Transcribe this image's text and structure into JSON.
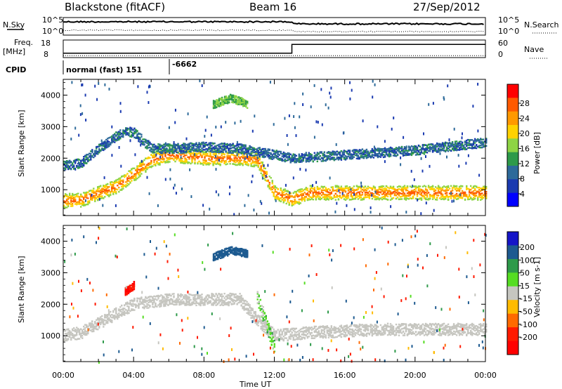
{
  "header": {
    "station": "Blackstone (fitACF)",
    "beam": "Beam 16",
    "date": "27/Sep/2012"
  },
  "strips": {
    "nsky_label": "N.Sky",
    "nsky_ticks": [
      "10^5",
      "10^0"
    ],
    "nsearch_label": "N.Search",
    "nsearch_ticks": [
      "10^5",
      "10^0"
    ],
    "freq_label": "Freq.",
    "freq_unit": "[MHz]",
    "freq_ticks": [
      "18",
      "8"
    ],
    "nave_label": "Nave",
    "nave_ticks": [
      "60",
      "0"
    ],
    "cpid_label": "CPID",
    "cpid_mode": "normal (fast) 151",
    "cpid_value": "-6662"
  },
  "power_colorbar": {
    "label": "Power [dB]",
    "ticks": [
      "28",
      "24",
      "20",
      "16",
      "12",
      "8",
      "4"
    ],
    "colors": [
      "#ff0000",
      "#ff5a00",
      "#ff9900",
      "#ffd200",
      "#8ed445",
      "#2e9a4a",
      "#2d6a9a",
      "#1a3ab0",
      "#0000ff"
    ]
  },
  "velocity_colorbar": {
    "label": "Velocity [m s-1]",
    "ticks": [
      "200",
      "100",
      "50",
      "15",
      "-15",
      "-50",
      "-100",
      "-200"
    ],
    "colors": [
      "#1515c8",
      "#1d5a90",
      "#2e9a4a",
      "#55dd22",
      "#c6c6c0",
      "#ffbb00",
      "#ff6a00",
      "#ff1a00",
      "#ff0000"
    ]
  },
  "chart_data": [
    {
      "type": "heatmap",
      "panel": "power",
      "ylabel": "Slant Range [km]",
      "x_ticks": [
        "00:00",
        "04:00",
        "08:00",
        "12:00",
        "16:00",
        "20:00",
        "00:00"
      ],
      "y_ticks": [
        1000,
        2000,
        3000,
        4000
      ],
      "ylim": [
        180,
        4500
      ],
      "xlim_hours": [
        0,
        24
      ],
      "bands": [
        {
          "name": "lower",
          "hours": [
            0,
            0.5,
            1,
            2,
            3,
            4,
            5,
            6,
            7,
            8,
            9,
            10,
            11,
            12,
            13,
            14,
            16,
            18,
            20,
            22,
            24
          ],
          "range_km": [
            650,
            650,
            680,
            900,
            1100,
            1500,
            1950,
            2100,
            2050,
            2000,
            2000,
            2000,
            1950,
            900,
            700,
            900,
            900,
            900,
            900,
            900,
            900
          ],
          "power_db": 28
        },
        {
          "name": "upper",
          "hours": [
            0,
            1,
            2,
            3,
            3.5,
            4,
            5,
            6,
            8,
            10,
            11,
            13,
            16,
            20,
            24
          ],
          "range_km": [
            1750,
            1850,
            2300,
            2700,
            2850,
            2800,
            2300,
            2300,
            2350,
            2300,
            2200,
            2000,
            2100,
            2250,
            2500
          ],
          "power_db": 8
        },
        {
          "name": "patch",
          "hours": [
            8.5,
            9.5,
            10.5
          ],
          "range_km": [
            3700,
            3900,
            3700
          ],
          "power_db": 14
        }
      ]
    },
    {
      "type": "heatmap",
      "panel": "velocity",
      "ylabel": "Slant Range [km]",
      "xlabel": "Time UT",
      "x_ticks": [
        "00:00",
        "04:00",
        "08:00",
        "12:00",
        "16:00",
        "20:00",
        "00:00"
      ],
      "y_ticks": [
        1000,
        2000,
        3000,
        4000
      ],
      "ylim": [
        180,
        4500
      ],
      "xlim_hours": [
        0,
        24
      ],
      "bands": [
        {
          "name": "ground-scatter",
          "hours": [
            0,
            1,
            2,
            4,
            6,
            8,
            10,
            11,
            12,
            14,
            18,
            24
          ],
          "range_km": [
            1000,
            1100,
            1400,
            2000,
            2150,
            2150,
            2150,
            1500,
            1000,
            1100,
            1200,
            1200
          ],
          "velocity": 0
        },
        {
          "name": "patch",
          "hours": [
            8.5,
            9.5,
            10.5
          ],
          "range_km": [
            3500,
            3700,
            3600
          ],
          "velocity": 150
        },
        {
          "name": "red-blob",
          "hours": [
            3.5,
            4.0
          ],
          "range_km": [
            2400,
            2600
          ],
          "velocity": -200
        },
        {
          "name": "green-streak",
          "hours": [
            11.0,
            12.0
          ],
          "range_km": [
            2200,
            600
          ],
          "velocity": 30
        }
      ]
    }
  ],
  "strip_series": {
    "freq_mhz": {
      "hours": [
        0,
        13,
        13,
        24
      ],
      "values": [
        10,
        10,
        16,
        16
      ]
    },
    "nave": {
      "hours": [
        0,
        24
      ],
      "values": [
        2,
        2
      ]
    }
  }
}
